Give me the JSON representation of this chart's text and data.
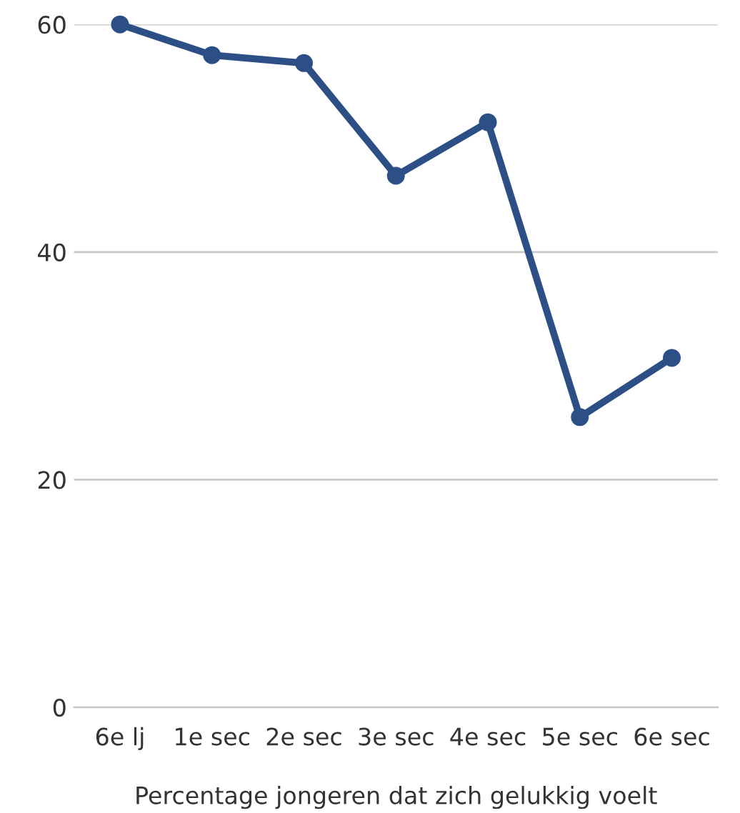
{
  "chart_data": {
    "type": "line",
    "xlabel": "Percentage jongeren dat zich gelukkig voelt",
    "categories": [
      "6e lj",
      "1e sec",
      "2e sec",
      "3e sec",
      "4e sec",
      "5e sec",
      "6e sec"
    ],
    "series": [
      {
        "color": "#2c4f85",
        "values": [
          60,
          57.3,
          56.6,
          46.7,
          51.4,
          25.5,
          30.7
        ]
      }
    ],
    "ylim": [
      0,
      60
    ],
    "yticks": [
      0,
      20,
      40,
      60
    ],
    "grid": "y",
    "marker": "circle",
    "line_style": "solid",
    "legend": false
  }
}
